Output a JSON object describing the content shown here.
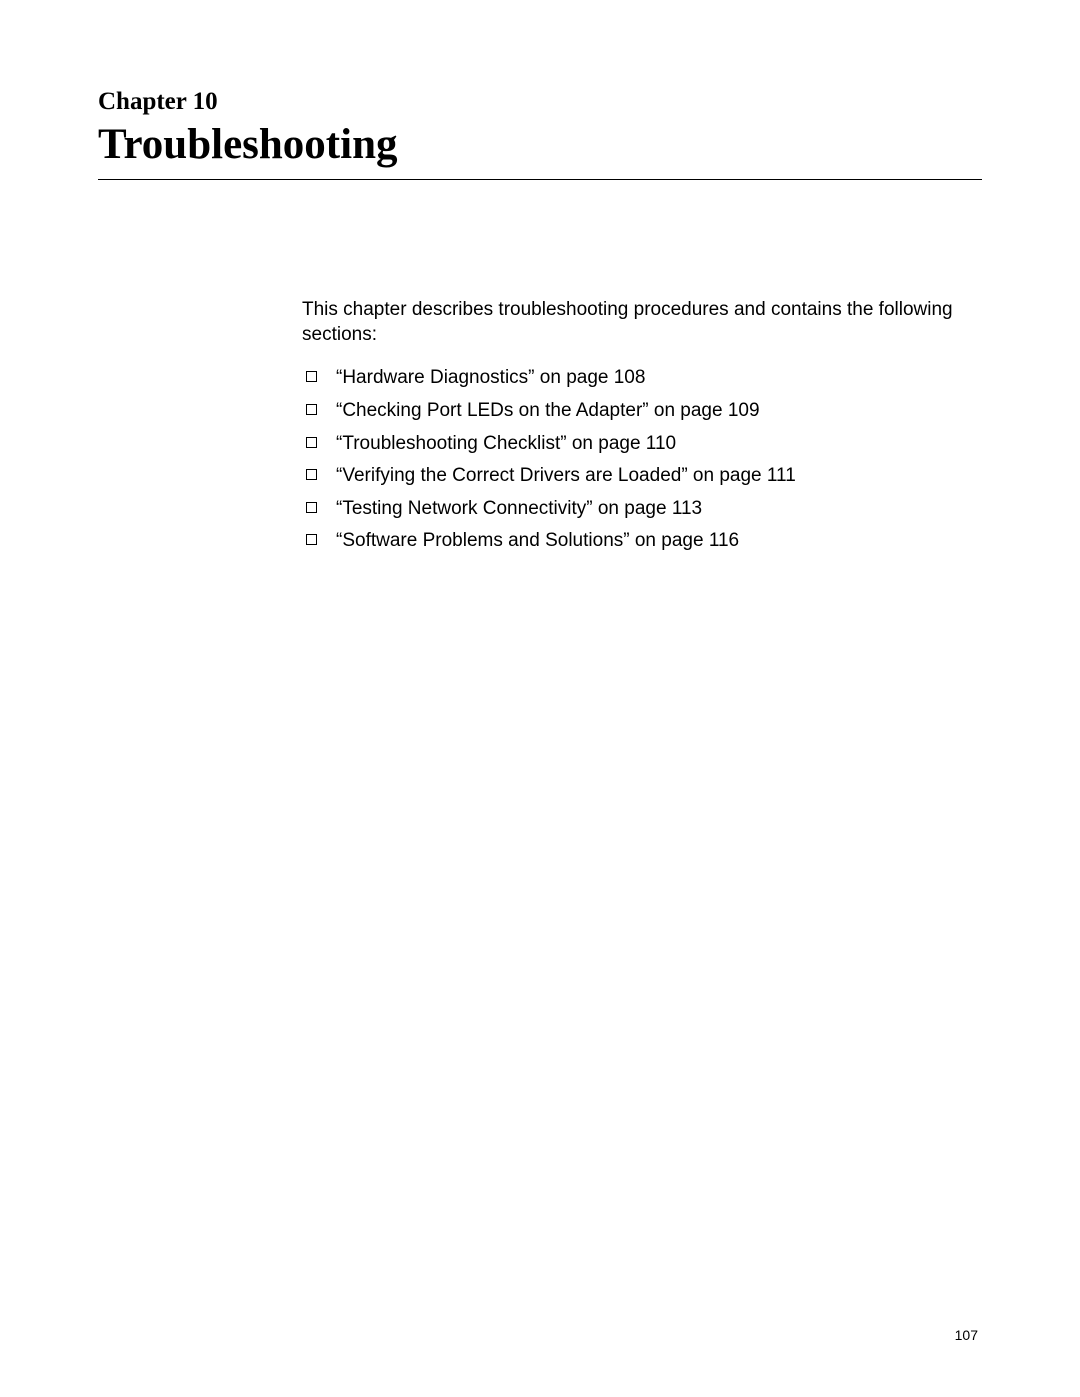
{
  "chapter": {
    "label": "Chapter 10",
    "title": "Troubleshooting"
  },
  "intro": "This chapter describes troubleshooting procedures and contains the following sections:",
  "sections": [
    {
      "text": "“Hardware Diagnostics” on page 108"
    },
    {
      "text": "“Checking Port LEDs on the Adapter” on page 109"
    },
    {
      "text": "“Troubleshooting Checklist” on page 110"
    },
    {
      "text": "“Verifying the Correct Drivers are Loaded” on page 111"
    },
    {
      "text": "“Testing Network Connectivity” on page 113"
    },
    {
      "text": "“Software Problems and Solutions” on page 116"
    }
  ],
  "page_number": "107",
  "colors": {
    "text": "#000000",
    "background": "#ffffff",
    "rule": "#000000"
  }
}
